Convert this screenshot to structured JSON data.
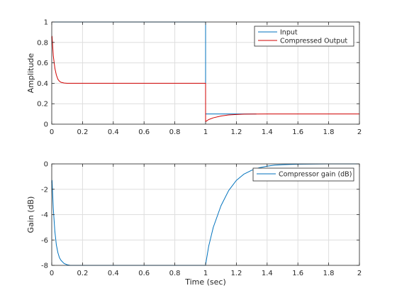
{
  "colors": {
    "input": "#0072BD",
    "output": "#D00000",
    "gain": "#0072BD",
    "grid": "#DEDEDE",
    "axis": "#262626"
  },
  "chart_data": [
    {
      "type": "line",
      "title": "",
      "xlabel": "",
      "ylabel": "Amplitude",
      "xlim": [
        0,
        2
      ],
      "ylim": [
        0,
        1
      ],
      "xticks": [
        0,
        0.2,
        0.4,
        0.6,
        0.8,
        1,
        1.2,
        1.4,
        1.6,
        1.8,
        2
      ],
      "xtick_labels": [
        "0",
        "0.2",
        "0.4",
        "0.6",
        "0.8",
        "1",
        "1.2",
        "1.4",
        "1.6",
        "1.8",
        "2"
      ],
      "yticks": [
        0,
        0.2,
        0.4,
        0.6,
        0.8,
        1
      ],
      "ytick_labels": [
        "0",
        "0.2",
        "0.4",
        "0.6",
        "0.8",
        "1"
      ],
      "grid": true,
      "legend_position": "top-right",
      "series": [
        {
          "name": "Input",
          "color": "#0072BD",
          "x": [
            0,
            1.0,
            1.0,
            1.05,
            1.1,
            1.15,
            1.2,
            1.25,
            1.3,
            1.33
          ],
          "y": [
            1,
            1,
            0.1,
            0.1,
            0.1,
            0.1,
            0.1,
            0.1,
            0.1,
            0.1
          ]
        },
        {
          "name": "Compressed Output",
          "color": "#D00000",
          "x": [
            0,
            0.002,
            0.01,
            0.02,
            0.03,
            0.04,
            0.05,
            0.06,
            0.08,
            0.1,
            0.12,
            0.15,
            0.2,
            0.4,
            0.6,
            0.8,
            0.99,
            1.0,
            1.0,
            1.02,
            1.05,
            1.1,
            1.15,
            1.2,
            1.25,
            1.3,
            1.4,
            1.6,
            1.8,
            2.0
          ],
          "y": [
            0.84,
            0.86,
            0.67,
            0.55,
            0.48,
            0.44,
            0.42,
            0.41,
            0.403,
            0.4,
            0.4,
            0.4,
            0.4,
            0.4,
            0.4,
            0.4,
            0.4,
            0.4,
            0.025,
            0.045,
            0.062,
            0.08,
            0.09,
            0.095,
            0.098,
            0.099,
            0.1,
            0.1,
            0.1,
            0.1
          ]
        }
      ]
    },
    {
      "type": "line",
      "title": "",
      "xlabel": "Time (sec)",
      "ylabel": "Gain (dB)",
      "xlim": [
        0,
        2
      ],
      "ylim": [
        -8,
        0
      ],
      "xticks": [
        0,
        0.2,
        0.4,
        0.6,
        0.8,
        1,
        1.2,
        1.4,
        1.6,
        1.8,
        2
      ],
      "xtick_labels": [
        "0",
        "0.2",
        "0.4",
        "0.6",
        "0.8",
        "1",
        "1.2",
        "1.4",
        "1.6",
        "1.8",
        "2"
      ],
      "yticks": [
        -8,
        -6,
        -4,
        -2,
        0
      ],
      "ytick_labels": [
        "-8",
        "-6",
        "-4",
        "-2",
        "0"
      ],
      "grid": true,
      "legend_position": "top-right",
      "series": [
        {
          "name": "Compressor gain (dB)",
          "color": "#0072BD",
          "x": [
            0,
            0.002,
            0.01,
            0.02,
            0.03,
            0.04,
            0.05,
            0.06,
            0.08,
            0.1,
            0.12,
            0.15,
            0.2,
            0.4,
            0.6,
            0.8,
            1.0,
            1.0,
            1.02,
            1.05,
            1.1,
            1.15,
            1.2,
            1.25,
            1.3,
            1.35,
            1.4,
            1.45,
            1.5,
            1.6,
            1.8,
            2.0
          ],
          "y": [
            -1.5,
            -1.3,
            -3.5,
            -5.3,
            -6.4,
            -7.0,
            -7.4,
            -7.6,
            -7.85,
            -7.95,
            -8,
            -8,
            -8,
            -8,
            -8,
            -8,
            -8,
            -7.95,
            -6.5,
            -5.0,
            -3.3,
            -2.1,
            -1.3,
            -0.8,
            -0.5,
            -0.3,
            -0.18,
            -0.1,
            -0.06,
            -0.02,
            0,
            0
          ]
        }
      ]
    }
  ]
}
